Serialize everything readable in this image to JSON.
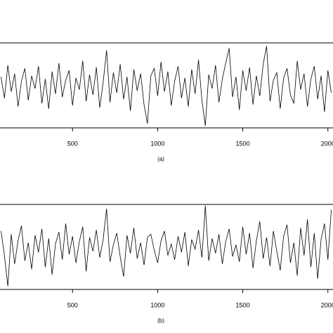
{
  "chart_data": [
    {
      "type": "line",
      "title": "(a)",
      "x": [
        80,
        100,
        120,
        140,
        160,
        180,
        200,
        220,
        240,
        260,
        280,
        300,
        320,
        340,
        360,
        380,
        400,
        420,
        440,
        460,
        480,
        500,
        520,
        540,
        560,
        580,
        600,
        620,
        640,
        660,
        680,
        700,
        720,
        740,
        760,
        780,
        800,
        820,
        840,
        860,
        880,
        900,
        920,
        940,
        960,
        980,
        1000,
        1020,
        1040,
        1060,
        1080,
        1100,
        1120,
        1140,
        1160,
        1180,
        1200,
        1220,
        1240,
        1260,
        1280,
        1300,
        1320,
        1340,
        1360,
        1380,
        1400,
        1420,
        1440,
        1460,
        1480,
        1500,
        1520,
        1540,
        1560,
        1580,
        1600,
        1620,
        1640,
        1660,
        1680,
        1700,
        1720,
        1740,
        1760,
        1780,
        1800,
        1820,
        1840,
        1860,
        1880,
        1900,
        1920,
        1940,
        1960,
        1980,
        2000,
        2020
      ],
      "values": [
        0.8,
        -1.2,
        1.9,
        -0.6,
        1.1,
        -2.0,
        0.4,
        1.6,
        -1.4,
        0.9,
        -0.3,
        1.8,
        -1.7,
        0.6,
        -2.2,
        1.3,
        -0.8,
        2.1,
        -1.1,
        0.5,
        1.4,
        -1.9,
        0.7,
        -0.4,
        2.3,
        -1.5,
        1.0,
        -0.9,
        1.7,
        -2.1,
        0.3,
        3.3,
        -1.6,
        1.2,
        -0.7,
        2.0,
        -1.3,
        0.8,
        -2.4,
        1.5,
        -0.5,
        1.1,
        -1.8,
        -3.6,
        0.9,
        1.6,
        -1.0,
        2.2,
        -0.6,
        1.3,
        -1.9,
        0.4,
        1.8,
        -1.2,
        0.7,
        -2.0,
        1.5,
        -0.8,
        2.4,
        -1.4,
        -3.8,
        1.0,
        -0.3,
        1.9,
        -1.6,
        0.6,
        2.1,
        3.5,
        -1.1,
        0.8,
        -2.3,
        1.4,
        -0.5,
        1.7,
        -1.8,
        0.9,
        -1.0,
        2.0,
        3.7,
        -1.5,
        0.5,
        1.2,
        -2.2,
        0.7,
        1.6,
        -0.9,
        -1.7,
        2.3,
        -0.4,
        1.1,
        -2.0,
        0.6,
        1.8,
        -1.3,
        0.9,
        -2.5,
        1.4,
        -0.7
      ],
      "color": "#000000",
      "xlim": [
        74,
        2030
      ],
      "xticks": [
        500,
        1000,
        1500,
        2000
      ],
      "ylim": [
        -4,
        4
      ],
      "grid": false
    },
    {
      "type": "line",
      "title": "(b)",
      "x": [
        80,
        100,
        120,
        140,
        160,
        180,
        200,
        220,
        240,
        260,
        280,
        300,
        320,
        340,
        360,
        380,
        400,
        420,
        440,
        460,
        480,
        500,
        520,
        540,
        560,
        580,
        600,
        620,
        640,
        660,
        680,
        700,
        720,
        740,
        760,
        780,
        800,
        820,
        840,
        860,
        880,
        900,
        920,
        940,
        960,
        980,
        1000,
        1020,
        1040,
        1060,
        1080,
        1100,
        1120,
        1140,
        1160,
        1180,
        1200,
        1220,
        1240,
        1260,
        1280,
        1300,
        1320,
        1340,
        1360,
        1380,
        1400,
        1420,
        1440,
        1460,
        1480,
        1500,
        1520,
        1540,
        1560,
        1580,
        1600,
        1620,
        1640,
        1660,
        1680,
        1700,
        1720,
        1740,
        1760,
        1780,
        1800,
        1820,
        1840,
        1860,
        1880,
        1900,
        1920,
        1940,
        1960,
        1980,
        2000,
        2020
      ],
      "values": [
        1.5,
        -0.8,
        -3.7,
        1.2,
        -1.6,
        0.6,
        2.0,
        -1.3,
        0.4,
        -2.1,
        1.1,
        -0.5,
        1.7,
        -1.9,
        0.8,
        -2.6,
        0.3,
        1.4,
        -1.2,
        2.2,
        -0.7,
        1.0,
        -1.5,
        0.5,
        1.9,
        -2.3,
        0.9,
        -0.4,
        1.6,
        -1.0,
        0.7,
        3.6,
        -1.4,
        0.2,
        1.3,
        -0.9,
        -2.8,
        1.1,
        -0.6,
        1.8,
        -1.1,
        0.4,
        -1.7,
        0.9,
        1.2,
        -0.3,
        -1.5,
        0.6,
        1.5,
        -0.8,
        0.3,
        -1.2,
        1.0,
        -0.5,
        1.4,
        -1.8,
        0.7,
        -0.2,
        1.6,
        -1.0,
        3.9,
        -1.3,
        0.8,
        -0.6,
        1.2,
        -1.6,
        0.5,
        1.7,
        -0.9,
        0.2,
        -1.4,
        1.9,
        -0.7,
        1.3,
        -2.0,
        0.6,
        2.4,
        -1.1,
        0.9,
        -1.8,
        1.5,
        -0.4,
        -2.2,
        1.0,
        2.1,
        -1.5,
        0.4,
        -2.7,
        1.8,
        -0.8,
        2.6,
        -1.9,
        1.3,
        -3.0,
        0.7,
        2.2,
        -1.2,
        3.5
      ],
      "color": "#000000",
      "xlim": [
        74,
        2030
      ],
      "xticks": [
        500,
        1000,
        1500,
        2000
      ],
      "ylim": [
        -4,
        4
      ],
      "grid": false
    }
  ]
}
